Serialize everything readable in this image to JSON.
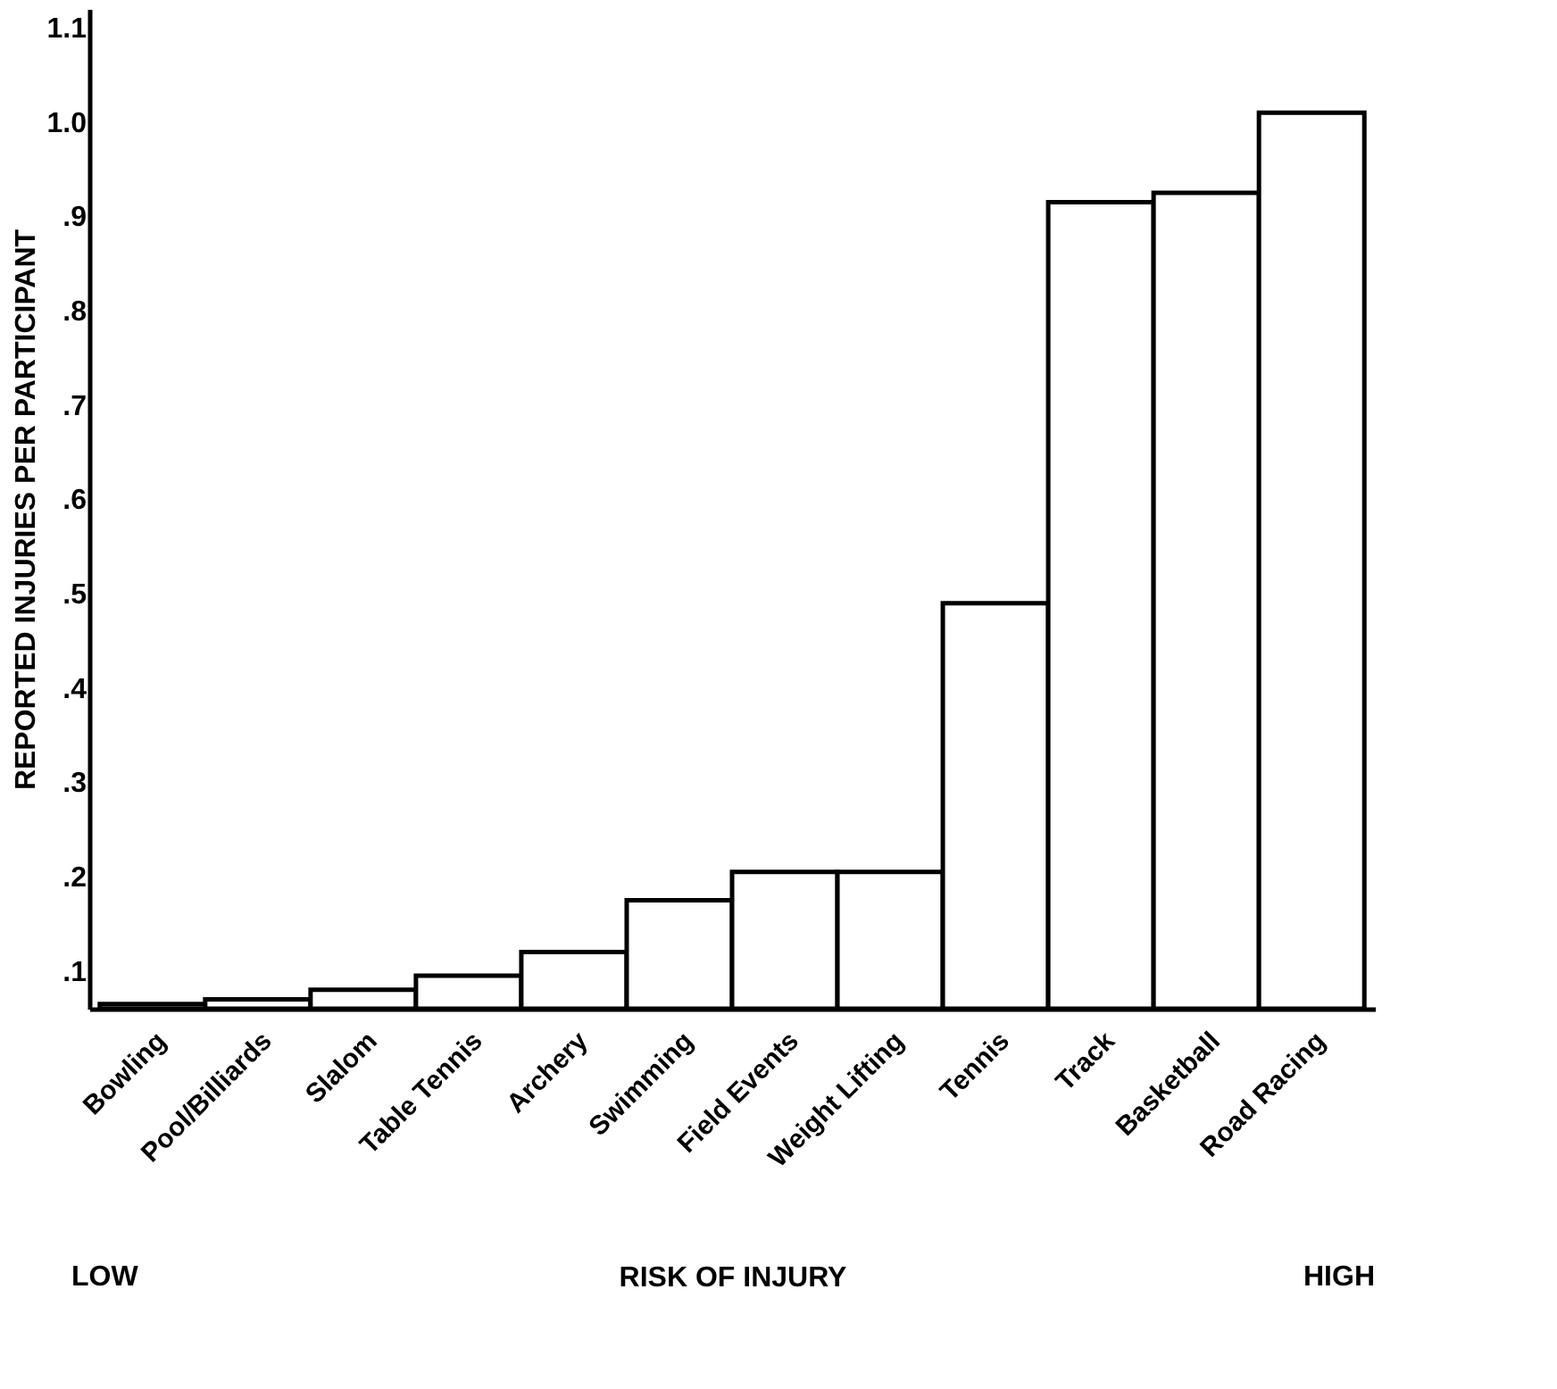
{
  "chart_data": {
    "type": "bar",
    "categories": [
      "Bowling",
      "Pool/Billiards",
      "Slalom",
      "Table Tennis",
      "Archery",
      "Swimming",
      "Field Events",
      "Weight Lifting",
      "Tennis",
      "Track",
      "Basketball",
      "Road Racing"
    ],
    "values": [
      0.065,
      0.07,
      0.08,
      0.095,
      0.12,
      0.175,
      0.205,
      0.205,
      0.49,
      0.915,
      0.925,
      1.01
    ],
    "color": "#ffffff",
    "ylabel": "REPORTED INJURIES PER PARTICIPANT",
    "xlabel": "RISK OF INJURY",
    "annotations": [
      "LOW",
      "HIGH"
    ],
    "ylim": [
      0.06,
      1.12
    ],
    "yticks": [
      {
        "value": 0.1,
        "label": ".1"
      },
      {
        "value": 0.2,
        "label": ".2"
      },
      {
        "value": 0.3,
        "label": ".3"
      },
      {
        "value": 0.4,
        "label": ".4"
      },
      {
        "value": 0.5,
        "label": ".5"
      },
      {
        "value": 0.6,
        "label": ".6"
      },
      {
        "value": 0.7,
        "label": ".7"
      },
      {
        "value": 0.8,
        "label": ".8"
      },
      {
        "value": 0.9,
        "label": ".9"
      },
      {
        "value": 1.0,
        "label": "1.0"
      },
      {
        "value": 1.1,
        "label": "1.1"
      }
    ],
    "grid": false
  }
}
